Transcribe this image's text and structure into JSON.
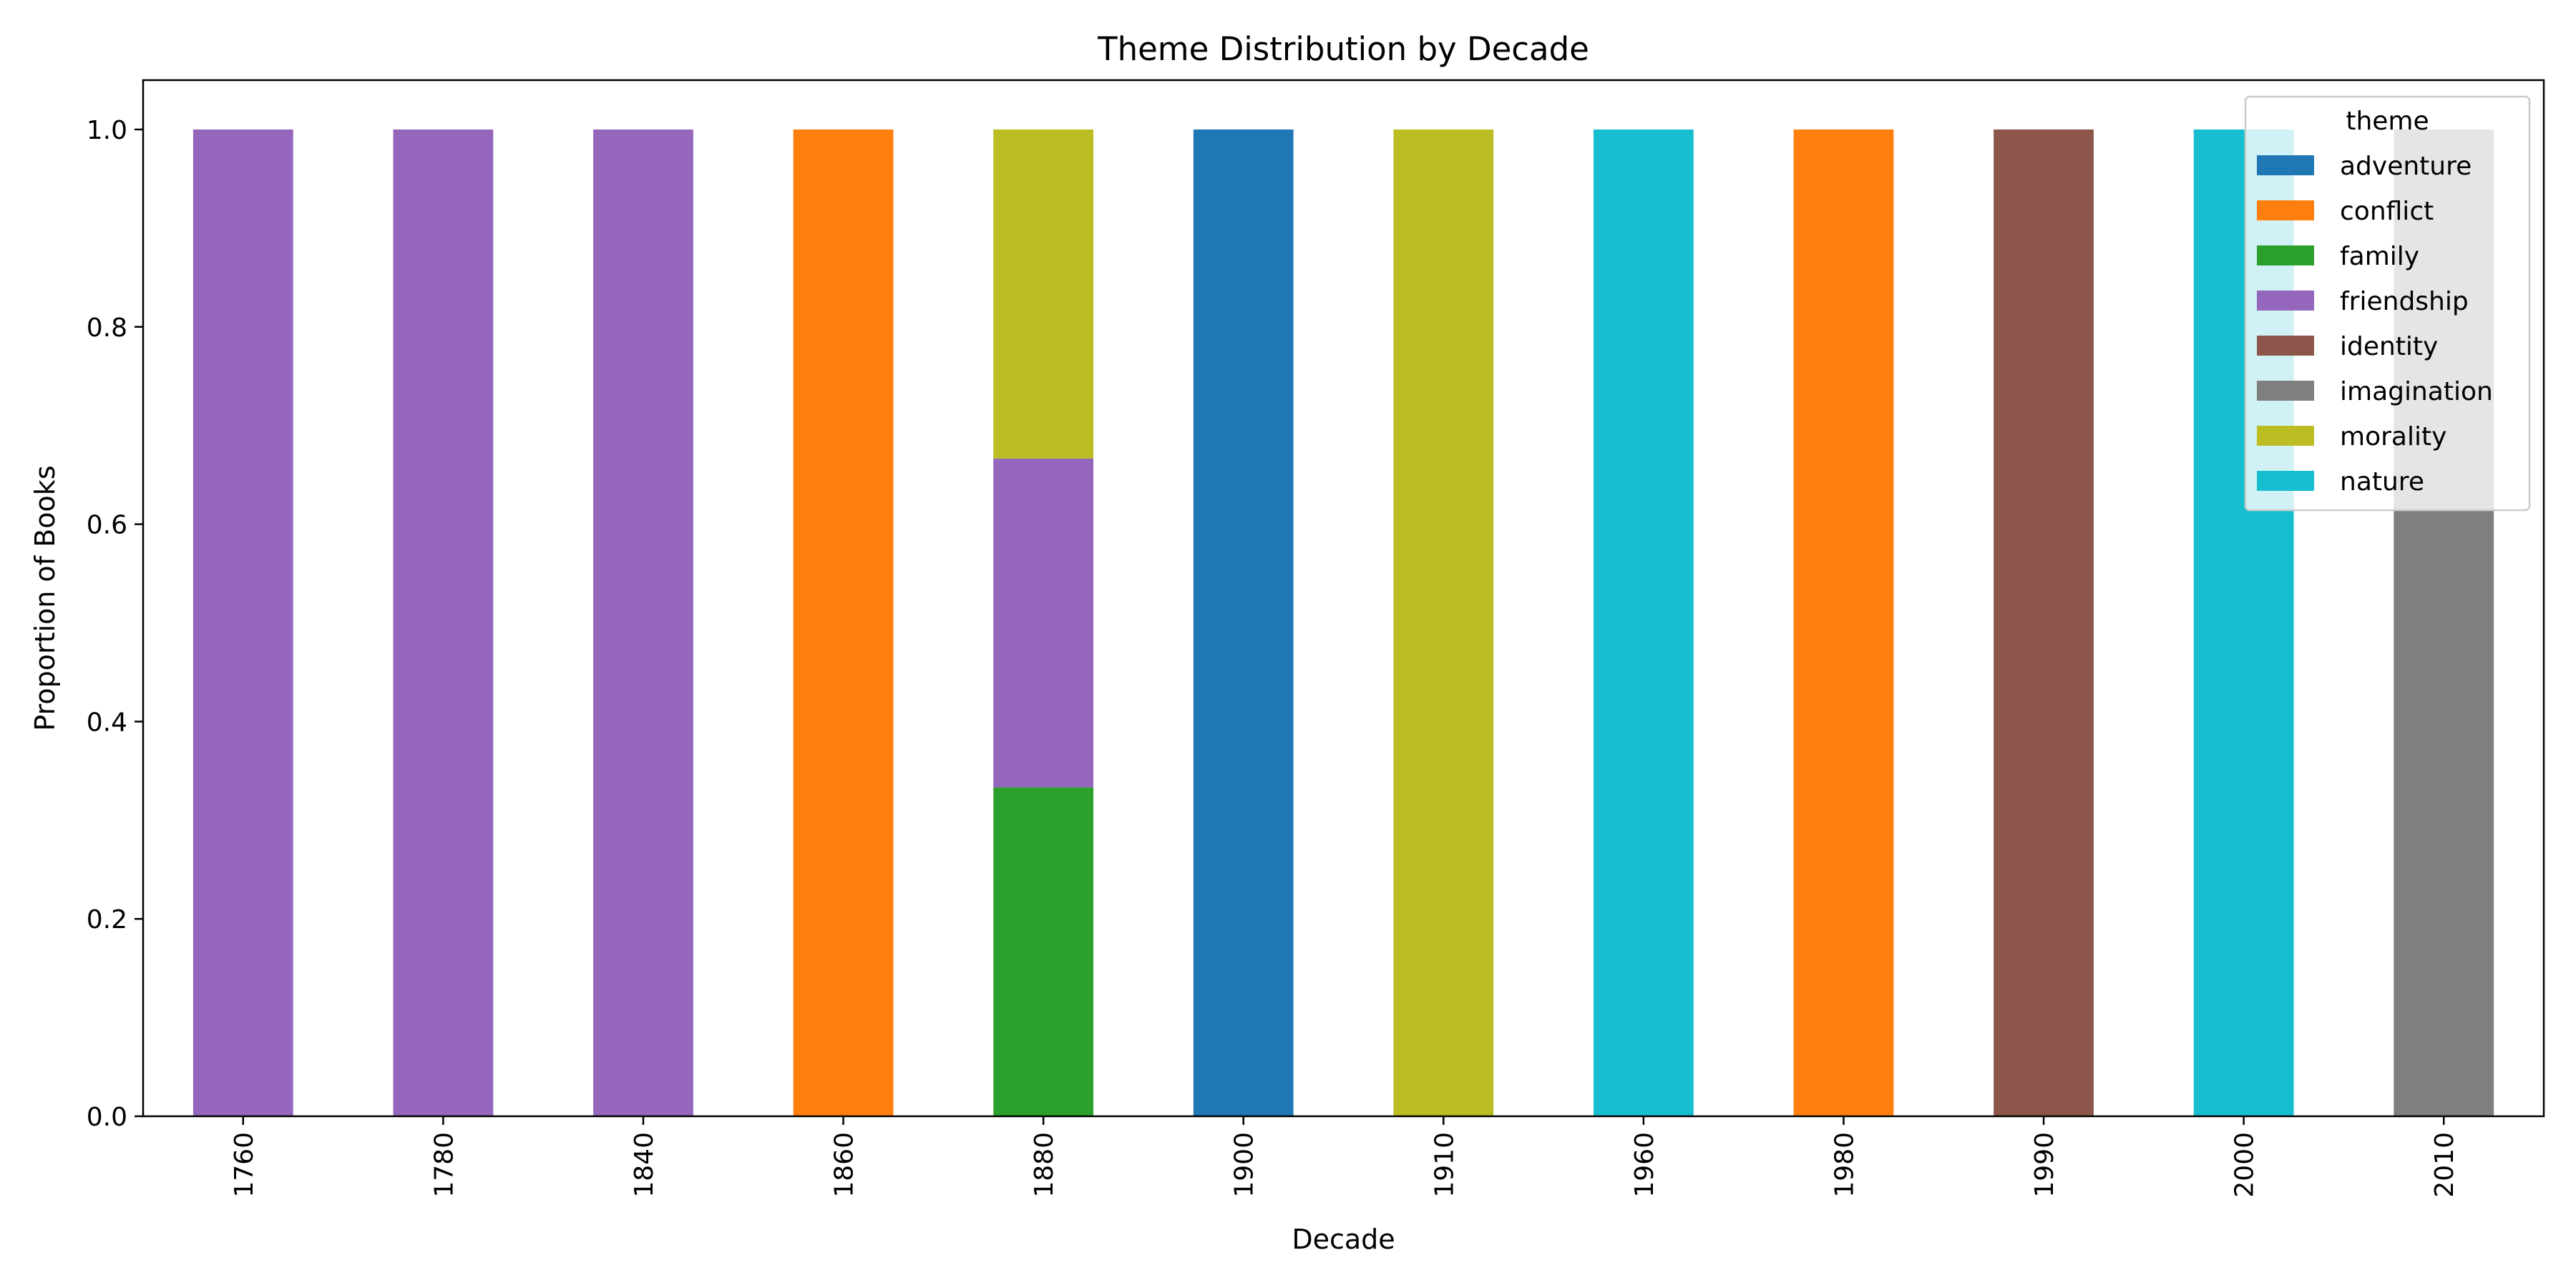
{
  "chart_data": {
    "type": "bar",
    "stacked": true,
    "title": "Theme Distribution by Decade",
    "xlabel": "Decade",
    "ylabel": "Proportion of Books",
    "ylim": [
      0,
      1.05
    ],
    "yticks": [
      "0.0",
      "0.2",
      "0.4",
      "0.6",
      "0.8",
      "1.0"
    ],
    "categories": [
      "1760",
      "1780",
      "1840",
      "1860",
      "1880",
      "1900",
      "1910",
      "1960",
      "1980",
      "1990",
      "2000",
      "2010"
    ],
    "legend": {
      "title": "theme",
      "placement": "top-right"
    },
    "series": [
      {
        "name": "adventure",
        "color": "#1f77b4",
        "values": [
          0,
          0,
          0,
          0,
          0,
          1,
          0,
          0,
          0,
          0,
          0,
          0
        ]
      },
      {
        "name": "conflict",
        "color": "#ff7f0e",
        "values": [
          0,
          0,
          0,
          1,
          0,
          0,
          0,
          0,
          1,
          0,
          0,
          0
        ]
      },
      {
        "name": "family",
        "color": "#2ca02c",
        "values": [
          0,
          0,
          0,
          0,
          0.3333,
          0,
          0,
          0,
          0,
          0,
          0,
          0
        ]
      },
      {
        "name": "friendship",
        "color": "#9467bd",
        "values": [
          1,
          1,
          1,
          0,
          0.3333,
          0,
          0,
          0,
          0,
          0,
          0,
          0
        ]
      },
      {
        "name": "identity",
        "color": "#8c564b",
        "values": [
          0,
          0,
          0,
          0,
          0,
          0,
          0,
          0,
          0,
          1,
          0,
          0
        ]
      },
      {
        "name": "imagination",
        "color": "#7f7f7f",
        "values": [
          0,
          0,
          0,
          0,
          0,
          0,
          0,
          0,
          0,
          0,
          0,
          1
        ]
      },
      {
        "name": "morality",
        "color": "#bcbd22",
        "values": [
          0,
          0,
          0,
          0,
          0.3334,
          0,
          1,
          0,
          0,
          0,
          0,
          0
        ]
      },
      {
        "name": "nature",
        "color": "#17becf",
        "values": [
          0,
          0,
          0,
          0,
          0,
          0,
          0,
          1,
          0,
          0,
          1,
          0
        ]
      }
    ]
  }
}
